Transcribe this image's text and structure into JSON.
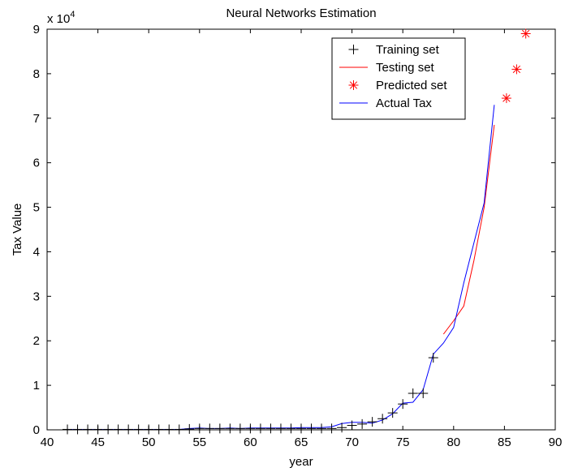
{
  "chart_data": {
    "type": "line",
    "title": "Neural Networks Estimation",
    "xlabel": "year",
    "ylabel": "Tax Value",
    "y_exponent_label": "x 10",
    "y_exponent_power": "4",
    "y_scale_factor": 10000,
    "xlim": [
      40,
      90
    ],
    "ylim": [
      0,
      90000
    ],
    "x_ticks": [
      40,
      45,
      50,
      55,
      60,
      65,
      70,
      75,
      80,
      85,
      90
    ],
    "y_ticks": [
      0,
      10000,
      20000,
      30000,
      40000,
      50000,
      60000,
      70000,
      80000,
      90000
    ],
    "y_tick_labels": [
      "0",
      "1",
      "2",
      "3",
      "4",
      "5",
      "6",
      "7",
      "8",
      "9"
    ],
    "grid": false,
    "legend_position": "top-right",
    "series": [
      {
        "name": "Training set",
        "style": "marker",
        "marker": "+",
        "color": "#000000",
        "x": [
          42,
          43,
          44,
          45,
          46,
          47,
          48,
          49,
          50,
          51,
          52,
          53,
          54,
          55,
          56,
          57,
          58,
          59,
          60,
          61,
          62,
          63,
          64,
          65,
          66,
          67,
          68,
          69,
          70,
          71,
          72,
          73,
          74,
          75,
          76,
          77,
          78
        ],
        "y": [
          100,
          100,
          100,
          100,
          100,
          100,
          100,
          100,
          100,
          100,
          100,
          100,
          200,
          300,
          300,
          300,
          300,
          300,
          300,
          300,
          300,
          300,
          300,
          300,
          300,
          300,
          300,
          500,
          1000,
          1300,
          1800,
          2500,
          3800,
          5800,
          8200,
          8200,
          16200
        ]
      },
      {
        "name": "Testing set",
        "style": "line",
        "color": "#ff0000",
        "x": [
          79,
          80,
          81,
          82,
          83,
          84
        ],
        "y": [
          21500,
          24500,
          27800,
          38000,
          50000,
          68500
        ]
      },
      {
        "name": "Predicted set",
        "style": "marker",
        "marker": "*",
        "color": "#ff0000",
        "x": [
          85.2,
          86.2,
          87.1
        ],
        "y": [
          74500,
          81000,
          89000
        ]
      },
      {
        "name": "Actual Tax",
        "style": "line",
        "color": "#0000ff",
        "x": [
          42,
          43,
          44,
          45,
          46,
          47,
          48,
          49,
          50,
          51,
          52,
          53,
          54,
          55,
          56,
          57,
          58,
          59,
          60,
          61,
          62,
          63,
          64,
          65,
          66,
          67,
          68,
          69,
          70,
          71,
          72,
          73,
          74,
          75,
          76,
          77,
          78,
          79,
          80,
          81,
          82,
          83,
          84
        ],
        "y": [
          100,
          100,
          100,
          100,
          100,
          100,
          100,
          100,
          100,
          100,
          100,
          100,
          300,
          400,
          300,
          300,
          400,
          300,
          400,
          400,
          400,
          400,
          400,
          500,
          500,
          500,
          700,
          1400,
          1700,
          1700,
          1500,
          2200,
          3600,
          6000,
          6200,
          9000,
          17000,
          19500,
          23000,
          33000,
          42000,
          51000,
          73000
        ]
      }
    ]
  }
}
